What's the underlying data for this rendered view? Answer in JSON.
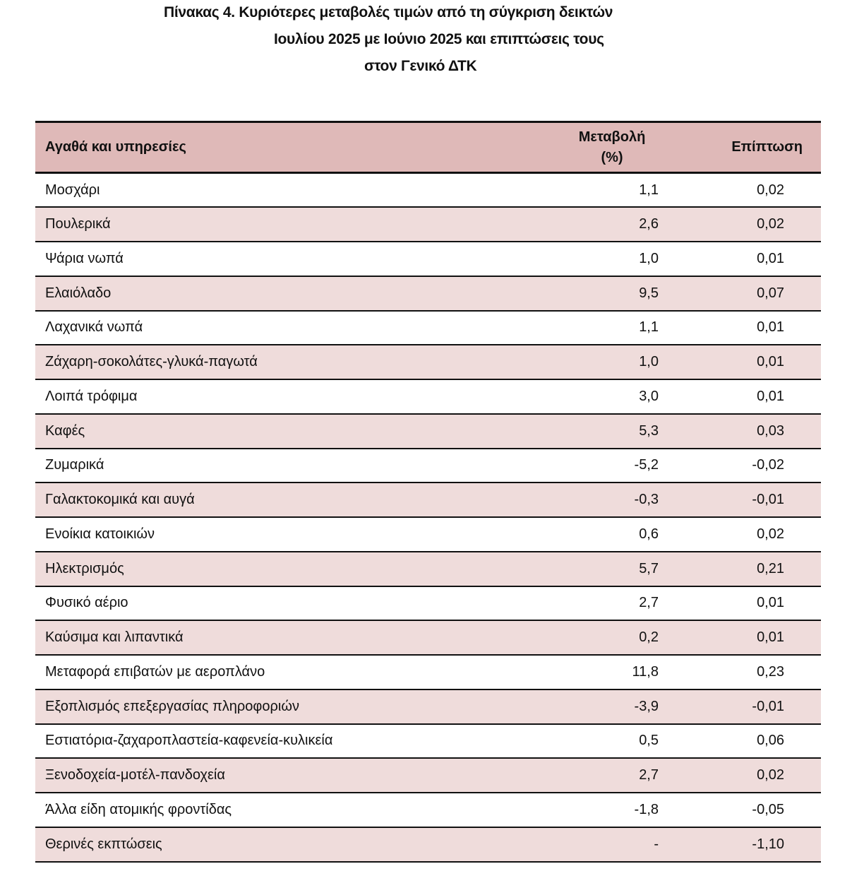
{
  "title": {
    "line1": "Πίνακας  4. Κυριότερες μεταβολές τιμών από τη σύγκριση δεικτών",
    "line2": "Ιουλίου 2025 με Ιούνιο 2025 και επιπτώσεις τους",
    "line3": "στον Γενικό ΔΤΚ"
  },
  "table": {
    "headers": {
      "name": "Αγαθά και υπηρεσίες",
      "change_line1": "Μεταβολή",
      "change_line2": "(%)",
      "impact": "Επίπτωση"
    },
    "rows": [
      {
        "name": "Μοσχάρι",
        "change": "1,1",
        "impact": "0,02"
      },
      {
        "name": "Πουλερικά",
        "change": "2,6",
        "impact": "0,02"
      },
      {
        "name": "Ψάρια νωπά",
        "change": "1,0",
        "impact": "0,01"
      },
      {
        "name": "Ελαιόλαδο",
        "change": "9,5",
        "impact": "0,07"
      },
      {
        "name": "Λαχανικά νωπά",
        "change": "1,1",
        "impact": "0,01"
      },
      {
        "name": "Ζάχαρη-σοκολάτες-γλυκά-παγωτά",
        "change": "1,0",
        "impact": "0,01"
      },
      {
        "name": "Λοιπά τρόφιμα",
        "change": "3,0",
        "impact": "0,01"
      },
      {
        "name": "Καφές",
        "change": "5,3",
        "impact": "0,03"
      },
      {
        "name": "Ζυμαρικά",
        "change": "-5,2",
        "impact": "-0,02"
      },
      {
        "name": "Γαλακτοκομικά και αυγά",
        "change": "-0,3",
        "impact": "-0,01"
      },
      {
        "name": "Ενοίκια κατοικιών",
        "change": "0,6",
        "impact": "0,02"
      },
      {
        "name": "Ηλεκτρισμός",
        "change": "5,7",
        "impact": "0,21"
      },
      {
        "name": "Φυσικό αέριο",
        "change": "2,7",
        "impact": "0,01"
      },
      {
        "name": "Καύσιμα και λιπαντικά",
        "change": "0,2",
        "impact": "0,01"
      },
      {
        "name": "Μεταφορά επιβατών με αεροπλάνο",
        "change": "11,8",
        "impact": "0,23"
      },
      {
        "name": "Εξοπλισμός επεξεργασίας πληροφοριών",
        "change": "-3,9",
        "impact": "-0,01"
      },
      {
        "name": "Εστιατόρια-ζαχαροπλαστεία-καφενεία-κυλικεία",
        "change": "0,5",
        "impact": "0,06"
      },
      {
        "name": "Ξενοδοχεία-μοτέλ-πανδοχεία",
        "change": "2,7",
        "impact": "0,02"
      },
      {
        "name": "Άλλα είδη ατομικής φροντίδας",
        "change": "-1,8",
        "impact": "-0,05"
      },
      {
        "name": "Θερινές εκπτώσεις",
        "change": "-",
        "impact": "-1,10"
      }
    ]
  }
}
